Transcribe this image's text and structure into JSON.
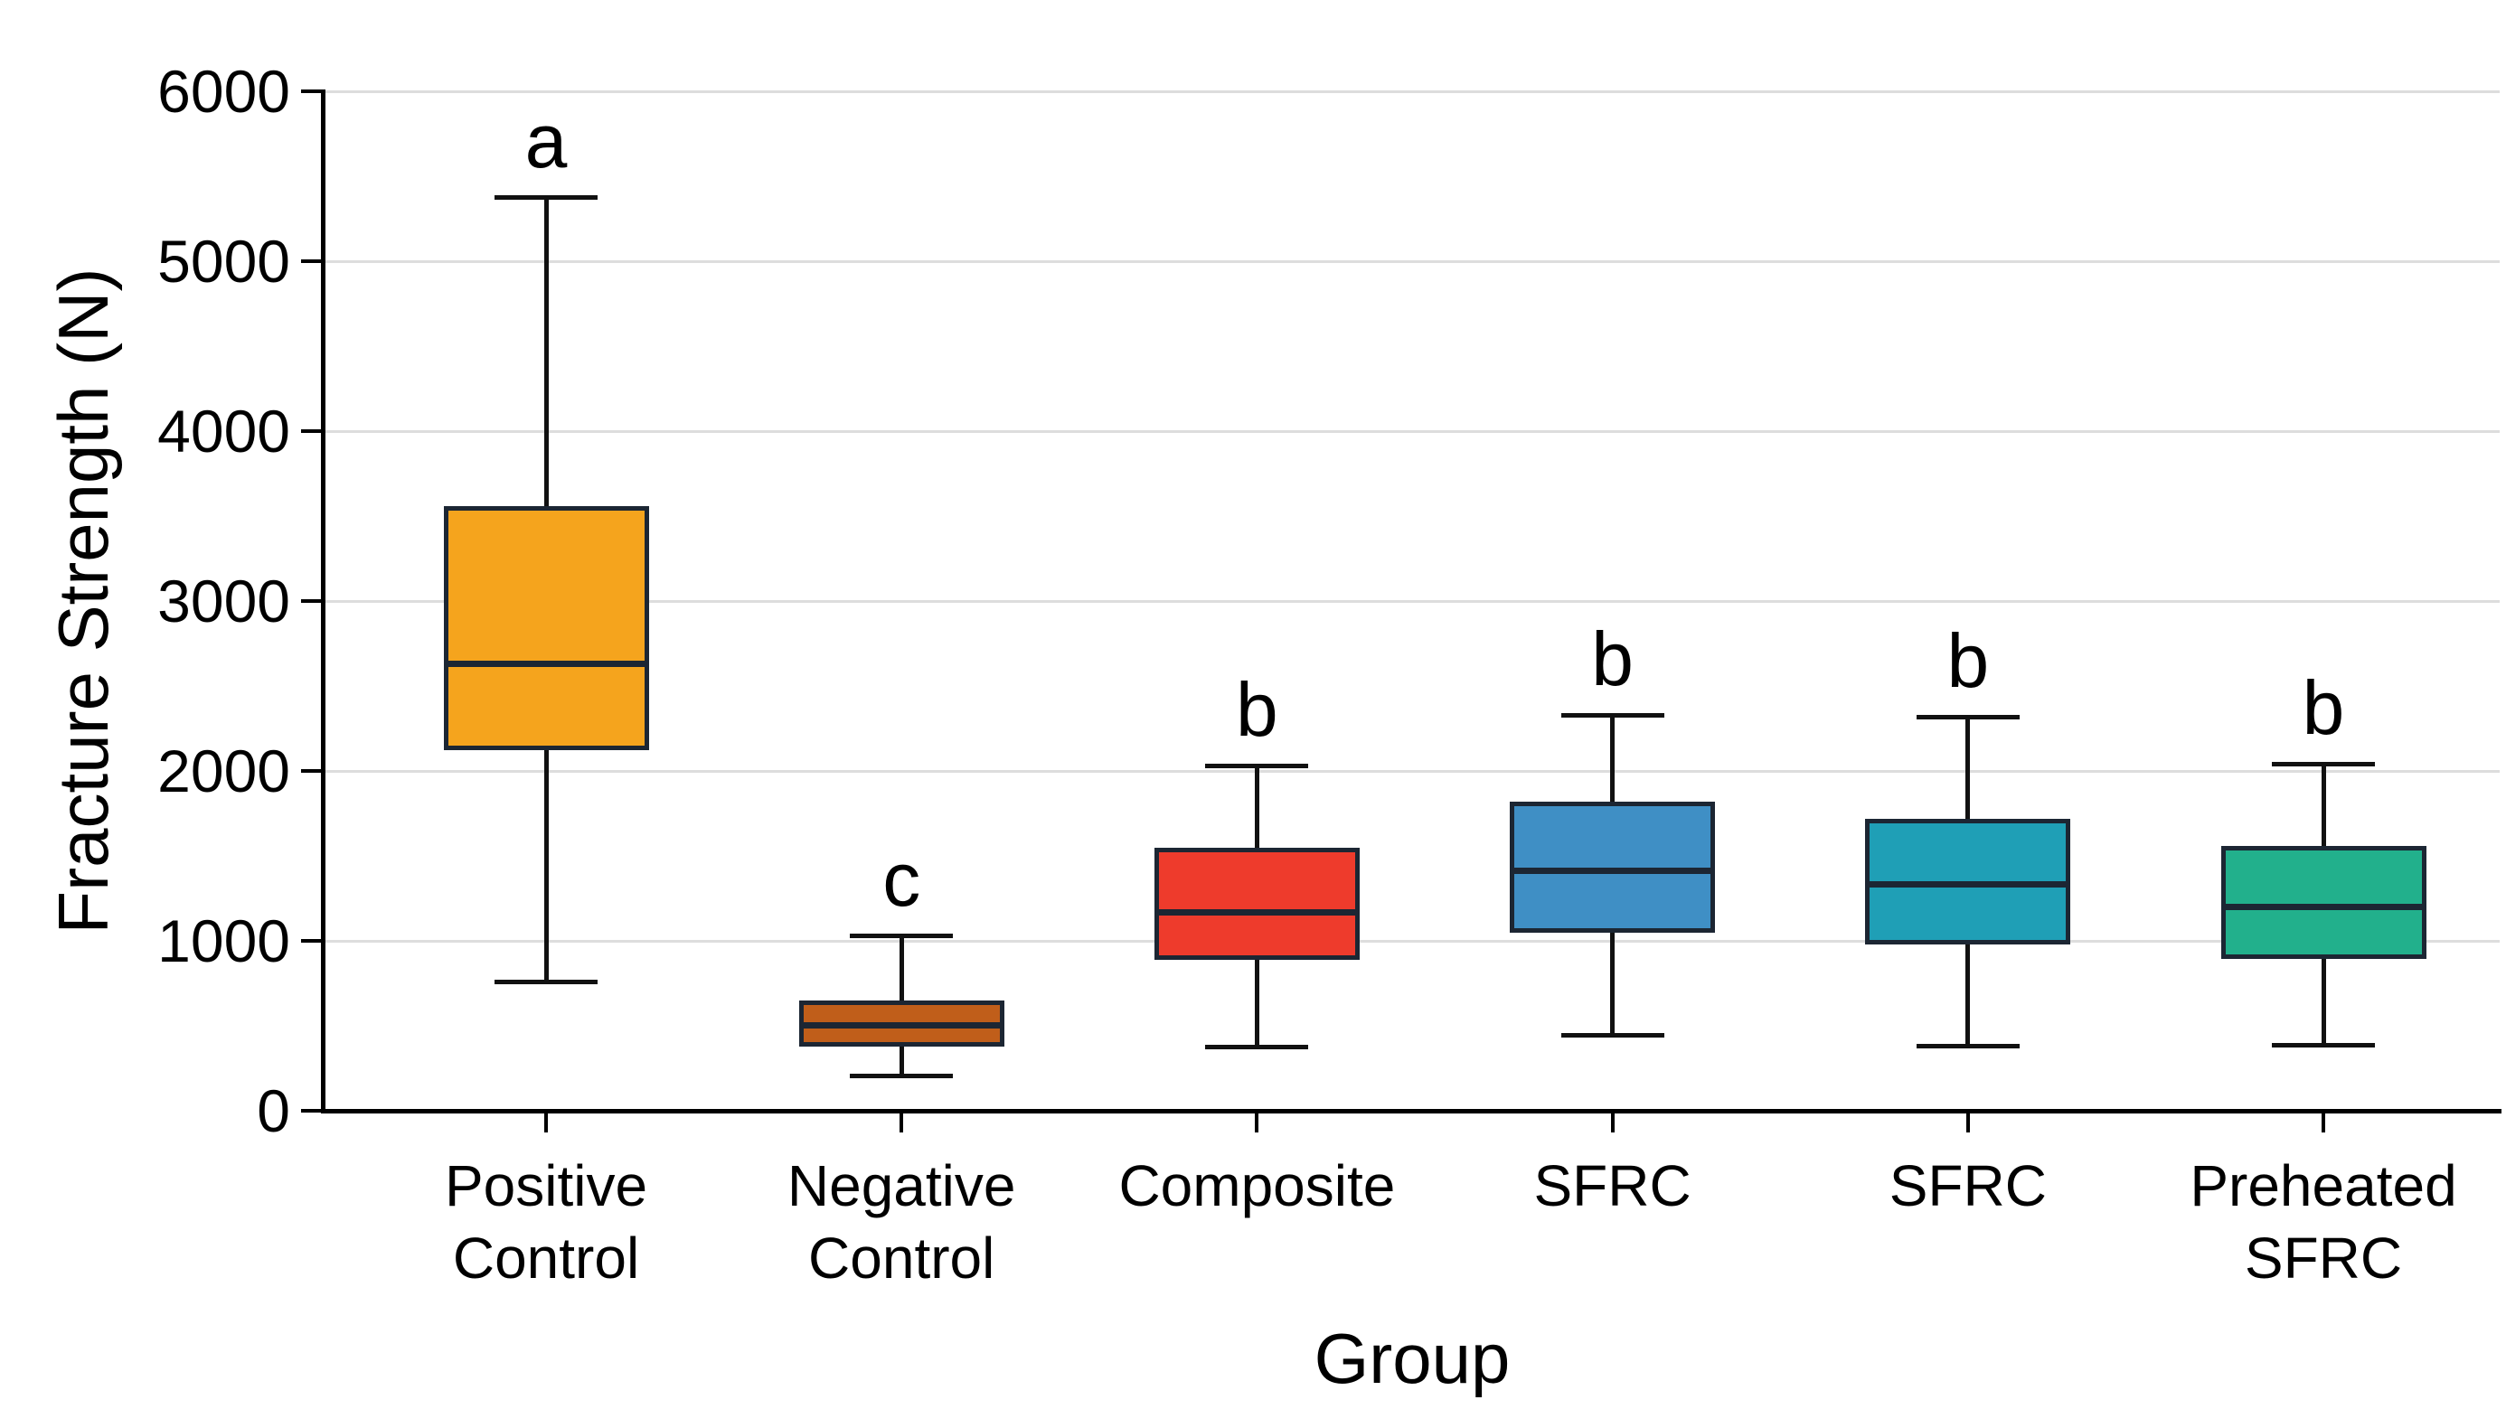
{
  "chart_data": {
    "type": "box",
    "title": "",
    "xlabel": "Group",
    "ylabel": "Fracture Strength (N)",
    "ylim": [
      0,
      6000
    ],
    "yticks": [
      0,
      1000,
      2000,
      3000,
      4000,
      5000,
      6000
    ],
    "grid": "horizontal-light-gray",
    "legend": "none",
    "groups": [
      {
        "label": "Positive Control",
        "label_lines": [
          "Positive",
          "Control"
        ],
        "letter": "a",
        "color": "#F5A41D",
        "min": 760,
        "q1": 2120,
        "median": 2630,
        "q3": 3560,
        "max": 5380
      },
      {
        "label": "Negative Control",
        "label_lines": [
          "Negative",
          "Control"
        ],
        "letter": "c",
        "color": "#C05E1A",
        "min": 210,
        "q1": 380,
        "median": 505,
        "q3": 650,
        "max": 1030
      },
      {
        "label": "Composite",
        "label_lines": [
          "Composite"
        ],
        "letter": "b",
        "color": "#EE3B2C",
        "min": 380,
        "q1": 890,
        "median": 1170,
        "q3": 1550,
        "max": 2030
      },
      {
        "label": "SFRC",
        "label_lines": [
          "SFRC"
        ],
        "letter": "b",
        "color": "#3F8FC5",
        "min": 445,
        "q1": 1050,
        "median": 1410,
        "q3": 1820,
        "max": 2330
      },
      {
        "label": "SFRC",
        "label_lines": [
          "SFRC"
        ],
        "letter": "b",
        "color": "#1F9FB6",
        "min": 385,
        "q1": 980,
        "median": 1330,
        "q3": 1720,
        "max": 2320
      },
      {
        "label": "Preheated SFRC",
        "label_lines": [
          "Preheated",
          "SFRC"
        ],
        "letter": "b",
        "color": "#22B08C",
        "min": 390,
        "q1": 895,
        "median": 1200,
        "q3": 1560,
        "max": 2040
      }
    ],
    "colors": {
      "box_border": "#1C2633",
      "median": "#1C2633",
      "whisker": "#111111",
      "axis": "#000000",
      "grid": "#DDDDDD",
      "background": "#FFFFFF"
    }
  }
}
